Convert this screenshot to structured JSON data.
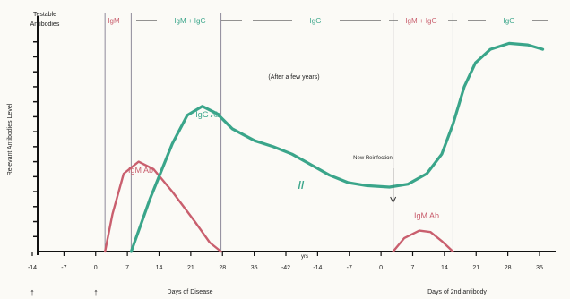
{
  "chart_data": {
    "type": "line",
    "title": "",
    "xlabel": "",
    "ylabel": "Relevant Antibodies Level",
    "corner_label_1": "Testable",
    "corner_label_2": "Antibodies",
    "x_tick_labels": [
      "-14",
      "-7",
      "0",
      "7",
      "14",
      "21",
      "28",
      "35",
      "-42",
      "-14",
      "-7",
      "0",
      "7",
      "14",
      "21",
      "28",
      "35"
    ],
    "x_axis_break_label": "yrs",
    "x_section_labels": [
      "Days of Disease",
      "Days of 2nd antibody"
    ],
    "onset_arrows": [
      "↑",
      "↑"
    ],
    "phase_labels": [
      "IgM",
      "IgM + IgG",
      "IgG",
      "IgM + IgG",
      "IgG"
    ],
    "annotations": {
      "years": "(After a few years)",
      "reinfection": "New Reinfection",
      "break_mark": "//"
    },
    "series": [
      {
        "name": "IgM Ab",
        "color": "#c95f6e",
        "points": [
          [
            0,
            0
          ],
          [
            2,
            2.5
          ],
          [
            5,
            5.2
          ],
          [
            9,
            6.0
          ],
          [
            13,
            5.5
          ],
          [
            18,
            4.0
          ],
          [
            24,
            2.0
          ],
          [
            28,
            0.6
          ],
          [
            31,
            0
          ]
        ]
      },
      {
        "name": "IgG Ab",
        "color": "#3aa58a",
        "points": [
          [
            7,
            0
          ],
          [
            12,
            3.5
          ],
          [
            18,
            7.2
          ],
          [
            22,
            9.1
          ],
          [
            26,
            9.7
          ],
          [
            30,
            9.2
          ],
          [
            34,
            8.2
          ],
          [
            40,
            7.4
          ],
          [
            45,
            7.0
          ],
          [
            50,
            6.5
          ],
          [
            55,
            5.8
          ],
          [
            60,
            5.1
          ],
          [
            65,
            4.6
          ],
          [
            70,
            4.4
          ],
          [
            76,
            4.3
          ],
          [
            81,
            4.5
          ],
          [
            86,
            5.2
          ],
          [
            90,
            6.5
          ],
          [
            93,
            8.5
          ],
          [
            96,
            11.0
          ],
          [
            99,
            12.6
          ],
          [
            103,
            13.5
          ],
          [
            108,
            13.9
          ],
          [
            113,
            13.8
          ],
          [
            117,
            13.5
          ]
        ]
      },
      {
        "name": "IgM Ab",
        "color": "#c95f6e",
        "points": [
          [
            77,
            0
          ],
          [
            80,
            0.9
          ],
          [
            84,
            1.4
          ],
          [
            87,
            1.3
          ],
          [
            90,
            0.7
          ],
          [
            93,
            0
          ]
        ]
      }
    ],
    "series_labels": [
      "IgM Ab",
      "IgG Ab",
      "IgM Ab"
    ],
    "ylim": [
      0,
      15
    ],
    "xlim": [
      -18,
      119
    ]
  }
}
